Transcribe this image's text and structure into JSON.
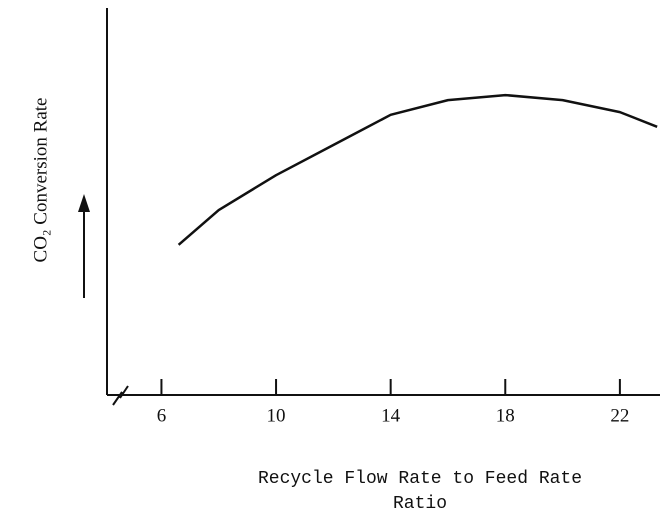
{
  "chart_data": {
    "type": "line",
    "ylabel": "CO₂ Conversion Rate",
    "xlabel": [
      "Recycle Flow Rate to Feed Rate",
      "Ratio"
    ],
    "x": [
      6.6,
      8,
      10,
      12,
      14,
      16,
      18,
      20,
      22,
      23.3
    ],
    "series": [
      {
        "color": "#111111",
        "values": [
          0.388,
          0.478,
          0.568,
          0.646,
          0.724,
          0.762,
          0.775,
          0.762,
          0.731,
          0.693
        ]
      }
    ],
    "xlim": [
      4.1,
      23.4
    ],
    "xticks": [
      6,
      10,
      14,
      18,
      22
    ],
    "ylim": [
      0,
      1
    ]
  }
}
